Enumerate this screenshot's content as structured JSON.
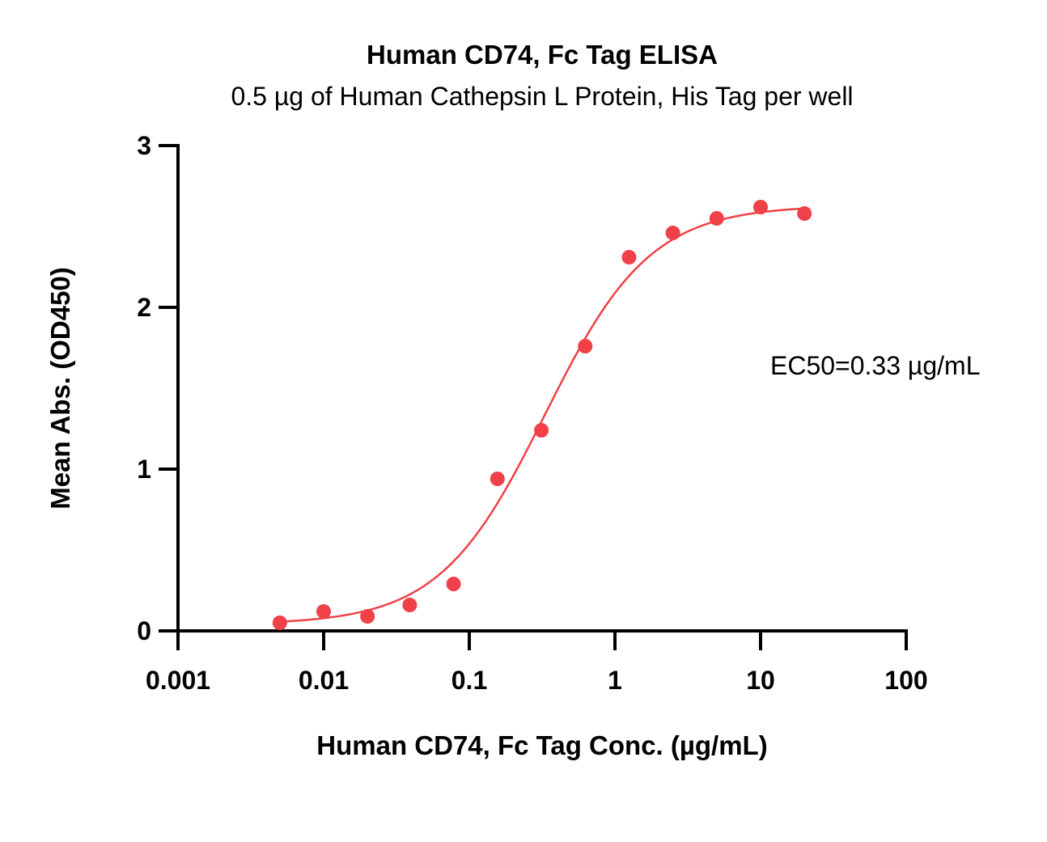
{
  "chart_data": {
    "type": "scatter",
    "title": "Human CD74, Fc Tag ELISA",
    "subtitle": "0.5 µg of Human Cathepsin L Protein, His Tag per well",
    "xlabel": "Human CD74, Fc Tag Conc. (µg/mL)",
    "ylabel": "Mean Abs. (OD450)",
    "x_scale": "log",
    "xlim": [
      0.001,
      100
    ],
    "ylim": [
      0,
      3
    ],
    "x_ticks": [
      0.001,
      0.01,
      0.1,
      1,
      10,
      100
    ],
    "x_tick_labels": [
      "0.001",
      "0.01",
      "0.1",
      "1",
      "10",
      "100"
    ],
    "y_ticks": [
      0,
      1,
      2,
      3
    ],
    "y_tick_labels": [
      "0",
      "1",
      "2",
      "3"
    ],
    "grid": false,
    "color": "#ef4147",
    "series": [
      {
        "x": [
          0.005,
          0.01,
          0.02,
          0.039,
          0.078,
          0.156,
          0.3125,
          0.625,
          1.25,
          2.5,
          5,
          10,
          20
        ],
        "y": [
          0.05,
          0.12,
          0.09,
          0.16,
          0.29,
          0.94,
          1.24,
          1.76,
          2.31,
          2.46,
          2.55,
          2.62,
          2.58
        ]
      }
    ],
    "fit": {
      "model": "4PL",
      "bottom": 0.04,
      "top": 2.63,
      "ec50": 0.33,
      "hill": 1.2
    },
    "annotations": [
      "EC50=0.33 µg/mL"
    ]
  }
}
